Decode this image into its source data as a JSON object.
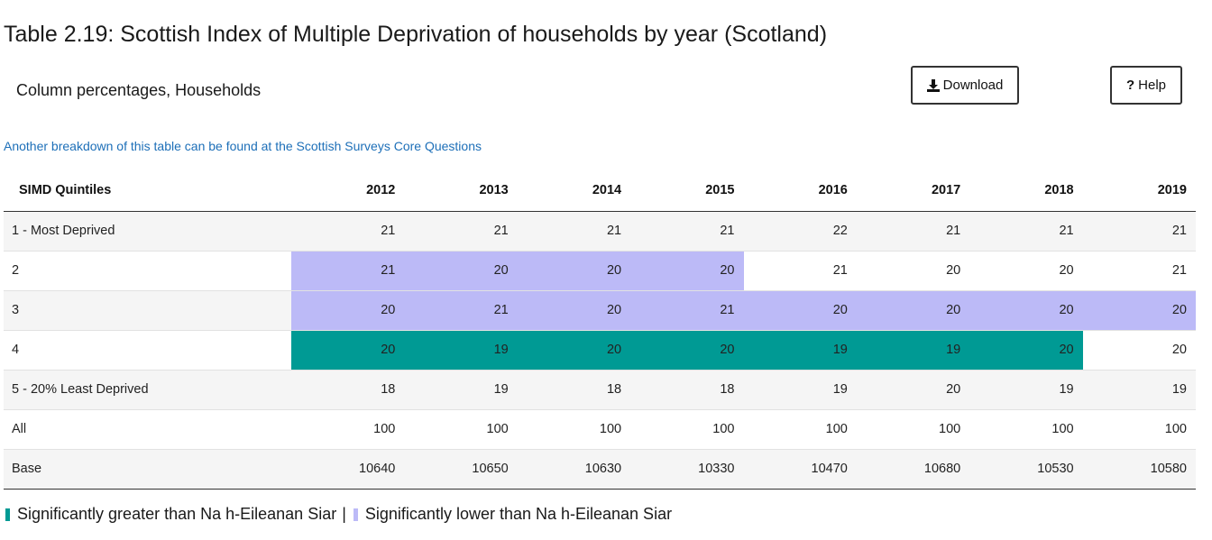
{
  "title": "Table 2.19: Scottish Index of Multiple Deprivation of households by year (Scotland)",
  "subtitle": "Column percentages, Households",
  "buttons": {
    "download": "Download",
    "help": "Help"
  },
  "link_text": "Another breakdown of this table can be found at the Scottish Surveys Core Questions",
  "colors": {
    "greater": "#009a94",
    "lower": "#bcbaf7",
    "link": "#1d6fb8"
  },
  "table": {
    "headers": [
      "SIMD Quintiles",
      "2012",
      "2013",
      "2014",
      "2015",
      "2016",
      "2017",
      "2018",
      "2019"
    ],
    "rows": [
      {
        "label": "1 - Most Deprived",
        "cells": [
          {
            "v": "21",
            "s": ""
          },
          {
            "v": "21",
            "s": ""
          },
          {
            "v": "21",
            "s": ""
          },
          {
            "v": "21",
            "s": ""
          },
          {
            "v": "22",
            "s": ""
          },
          {
            "v": "21",
            "s": ""
          },
          {
            "v": "21",
            "s": ""
          },
          {
            "v": "21",
            "s": ""
          }
        ]
      },
      {
        "label": "2",
        "cells": [
          {
            "v": "21",
            "s": "lower"
          },
          {
            "v": "20",
            "s": "lower"
          },
          {
            "v": "20",
            "s": "lower"
          },
          {
            "v": "20",
            "s": "lower"
          },
          {
            "v": "21",
            "s": ""
          },
          {
            "v": "20",
            "s": ""
          },
          {
            "v": "20",
            "s": ""
          },
          {
            "v": "21",
            "s": ""
          }
        ]
      },
      {
        "label": "3",
        "cells": [
          {
            "v": "20",
            "s": "lower"
          },
          {
            "v": "21",
            "s": "lower"
          },
          {
            "v": "20",
            "s": "lower"
          },
          {
            "v": "21",
            "s": "lower"
          },
          {
            "v": "20",
            "s": "lower"
          },
          {
            "v": "20",
            "s": "lower"
          },
          {
            "v": "20",
            "s": "lower"
          },
          {
            "v": "20",
            "s": "lower"
          }
        ]
      },
      {
        "label": "4",
        "cells": [
          {
            "v": "20",
            "s": "greater"
          },
          {
            "v": "19",
            "s": "greater"
          },
          {
            "v": "20",
            "s": "greater"
          },
          {
            "v": "20",
            "s": "greater"
          },
          {
            "v": "19",
            "s": "greater"
          },
          {
            "v": "19",
            "s": "greater"
          },
          {
            "v": "20",
            "s": "greater"
          },
          {
            "v": "20",
            "s": ""
          }
        ]
      },
      {
        "label": "5 - 20% Least Deprived",
        "cells": [
          {
            "v": "18",
            "s": ""
          },
          {
            "v": "19",
            "s": ""
          },
          {
            "v": "18",
            "s": ""
          },
          {
            "v": "18",
            "s": ""
          },
          {
            "v": "19",
            "s": ""
          },
          {
            "v": "20",
            "s": ""
          },
          {
            "v": "19",
            "s": ""
          },
          {
            "v": "19",
            "s": ""
          }
        ]
      },
      {
        "label": "All",
        "cells": [
          {
            "v": "100",
            "s": ""
          },
          {
            "v": "100",
            "s": ""
          },
          {
            "v": "100",
            "s": ""
          },
          {
            "v": "100",
            "s": ""
          },
          {
            "v": "100",
            "s": ""
          },
          {
            "v": "100",
            "s": ""
          },
          {
            "v": "100",
            "s": ""
          },
          {
            "v": "100",
            "s": ""
          }
        ]
      },
      {
        "label": "Base",
        "cells": [
          {
            "v": "10640",
            "s": ""
          },
          {
            "v": "10650",
            "s": ""
          },
          {
            "v": "10630",
            "s": ""
          },
          {
            "v": "10330",
            "s": ""
          },
          {
            "v": "10470",
            "s": ""
          },
          {
            "v": "10680",
            "s": ""
          },
          {
            "v": "10530",
            "s": ""
          },
          {
            "v": "10580",
            "s": ""
          }
        ]
      }
    ]
  },
  "legend": {
    "greater": "Significantly greater than Na h-Eileanan Siar",
    "separator": "|",
    "lower": "Significantly lower than Na h-Eileanan Siar"
  }
}
